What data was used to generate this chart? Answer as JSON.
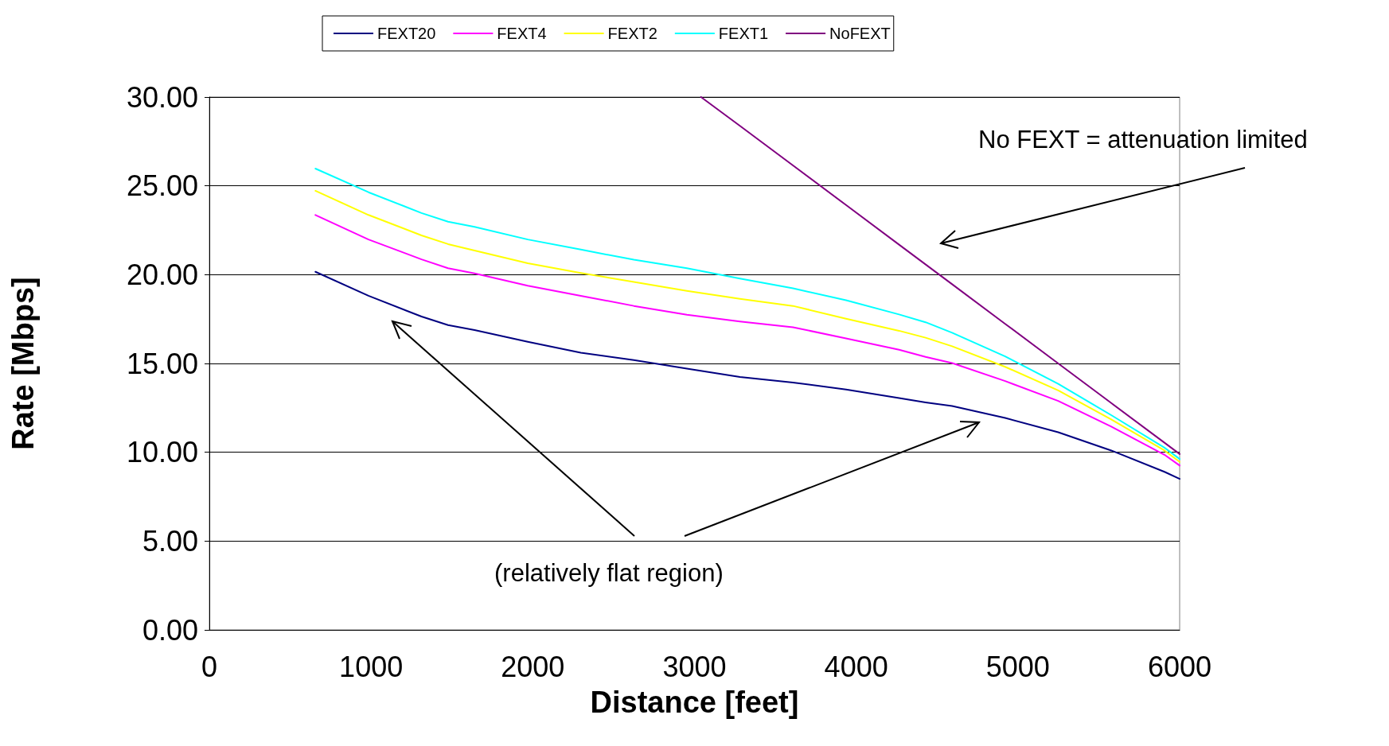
{
  "chart_data": {
    "type": "line",
    "xlabel": "Distance [feet]",
    "ylabel": "Rate [Mbps]",
    "x": [
      656,
      984,
      1312,
      1476,
      1640,
      1969,
      2297,
      2625,
      2953,
      3281,
      3609,
      3937,
      4265,
      4429,
      4593,
      4921,
      5249,
      5577,
      5906,
      6000
    ],
    "series": [
      {
        "name": "FEXT20",
        "color": "#000080",
        "values": [
          20.16,
          18.81,
          17.64,
          17.16,
          16.88,
          16.22,
          15.6,
          15.19,
          14.71,
          14.24,
          13.93,
          13.53,
          13.05,
          12.81,
          12.6,
          11.93,
          11.13,
          10.1,
          8.9,
          8.5
        ]
      },
      {
        "name": "FEXT4",
        "color": "#ff00ff",
        "values": [
          23.36,
          21.98,
          20.86,
          20.36,
          20.07,
          19.38,
          18.81,
          18.24,
          17.74,
          17.36,
          17.04,
          16.41,
          15.77,
          15.37,
          15.02,
          14.01,
          12.89,
          11.45,
          9.86,
          9.25
        ]
      },
      {
        "name": "FEXT2",
        "color": "#ffff00",
        "values": [
          24.72,
          23.36,
          22.21,
          21.72,
          21.36,
          20.64,
          20.09,
          19.59,
          19.09,
          18.64,
          18.24,
          17.52,
          16.84,
          16.45,
          15.97,
          14.81,
          13.48,
          11.85,
          10.1,
          9.46
        ]
      },
      {
        "name": "FEXT1",
        "color": "#00ffff",
        "values": [
          25.97,
          24.64,
          23.47,
          22.98,
          22.69,
          21.98,
          21.41,
          20.84,
          20.36,
          19.78,
          19.23,
          18.56,
          17.76,
          17.32,
          16.73,
          15.4,
          13.85,
          12.09,
          10.26,
          9.62
        ]
      },
      {
        "name": "NoFEXT",
        "color": "#800080",
        "x": [
          3040,
          3281,
          3609,
          3937,
          4265,
          4593,
          4921,
          5249,
          5577,
          5906,
          6000
        ],
        "values": [
          30,
          28.38,
          26.15,
          23.92,
          21.69,
          19.46,
          17.23,
          15.0,
          12.77,
          10.54,
          9.9
        ]
      }
    ],
    "xlim": [
      0,
      6000
    ],
    "xticks": [
      0,
      1000,
      2000,
      3000,
      4000,
      5000,
      6000
    ],
    "ylim": [
      0,
      30
    ],
    "yticks": [
      {
        "value": 0,
        "label": "0.00"
      },
      {
        "value": 5,
        "label": "5.00"
      },
      {
        "value": 10,
        "label": "10.00"
      },
      {
        "value": 15,
        "label": "15.00"
      },
      {
        "value": 20,
        "label": "20.00"
      },
      {
        "value": 25,
        "label": "25.00"
      },
      {
        "value": 30,
        "label": "30.00"
      }
    ],
    "grid": "y",
    "legend": "top",
    "marker": "none",
    "line_style": "solid",
    "annotations": [
      "No FEXT = attenuation limited",
      "(relatively flat region)"
    ]
  }
}
